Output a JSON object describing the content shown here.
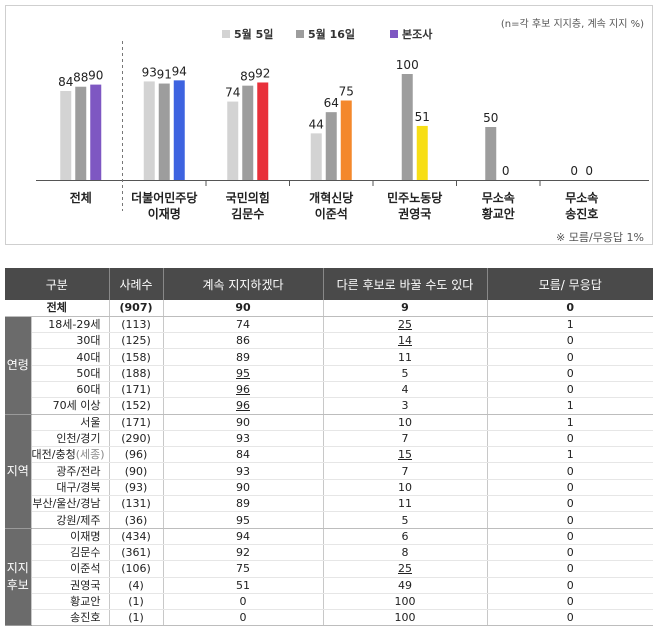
{
  "chart_data": {
    "type": "bar",
    "note": "(n=각 후보 지지층, 계속 지지 %)",
    "footnote": "※ 모름/무응답 1%",
    "ylim": [
      0,
      100
    ],
    "legend_position": "top",
    "categories": [
      [
        "전체"
      ],
      [
        "더불어민주당",
        "이재명"
      ],
      [
        "국민의힘",
        "김문수"
      ],
      [
        "개혁신당",
        "이준석"
      ],
      [
        "민주노동당",
        "권영국"
      ],
      [
        "무소속",
        "황교안"
      ],
      [
        "무소속",
        "송진호"
      ]
    ],
    "series": [
      {
        "name": "5월 5일",
        "values": [
          84,
          93,
          74,
          44,
          null,
          null,
          null
        ]
      },
      {
        "name": "5월 16일",
        "values": [
          88,
          91,
          89,
          64,
          100,
          50,
          0
        ]
      },
      {
        "name": "본조사",
        "values": [
          90,
          94,
          92,
          75,
          51,
          0,
          0
        ]
      }
    ],
    "colors": {
      "series_0": "#d3d3d3",
      "series_1": "#9d9d9d",
      "series_2_per_category": [
        "#7e57c2",
        "#3d63e0",
        "#e8303a",
        "#f4882c",
        "#f7de14",
        "#9d9d9d",
        "#9d9d9d"
      ]
    }
  },
  "table": {
    "headers": [
      "구분",
      "사례수",
      "계속 지지하겠다",
      "다른 후보로 바꿀 수도 있다",
      "모름/ 무응답"
    ],
    "total": {
      "label": "전체",
      "n": "(907)",
      "keep": "90",
      "switch": "9",
      "dk": "0"
    },
    "groups": [
      {
        "label": "연령",
        "rows": [
          {
            "label": "18세-29세",
            "n": "(113)",
            "keep": "74",
            "switch": "25",
            "dk": "1",
            "ul": "switch"
          },
          {
            "label": "30대",
            "n": "(125)",
            "keep": "86",
            "switch": "14",
            "dk": "0",
            "ul": "switch"
          },
          {
            "label": "40대",
            "n": "(158)",
            "keep": "89",
            "switch": "11",
            "dk": "0"
          },
          {
            "label": "50대",
            "n": "(188)",
            "keep": "95",
            "switch": "5",
            "dk": "0",
            "ul": "keep"
          },
          {
            "label": "60대",
            "n": "(171)",
            "keep": "96",
            "switch": "4",
            "dk": "0",
            "ul": "keep"
          },
          {
            "label": "70세 이상",
            "n": "(152)",
            "keep": "96",
            "switch": "3",
            "dk": "1",
            "ul": "keep"
          }
        ]
      },
      {
        "label": "지역",
        "rows": [
          {
            "label": "서울",
            "n": "(171)",
            "keep": "90",
            "switch": "10",
            "dk": "1"
          },
          {
            "label": "인천/경기",
            "n": "(290)",
            "keep": "93",
            "switch": "7",
            "dk": "0"
          },
          {
            "label": "대전/충청",
            "label_extra": "(세종)",
            "n": "(96)",
            "keep": "84",
            "switch": "15",
            "dk": "1",
            "ul": "switch"
          },
          {
            "label": "광주/전라",
            "n": "(90)",
            "keep": "93",
            "switch": "7",
            "dk": "0"
          },
          {
            "label": "대구/경북",
            "n": "(93)",
            "keep": "90",
            "switch": "10",
            "dk": "0"
          },
          {
            "label": "부산/울산/경남",
            "n": "(131)",
            "keep": "89",
            "switch": "11",
            "dk": "0"
          },
          {
            "label": "강원/제주",
            "n": "(36)",
            "keep": "95",
            "switch": "5",
            "dk": "0"
          }
        ]
      },
      {
        "label": "지지후보",
        "rows": [
          {
            "label": "이재명",
            "n": "(434)",
            "keep": "94",
            "switch": "6",
            "dk": "0"
          },
          {
            "label": "김문수",
            "n": "(361)",
            "keep": "92",
            "switch": "8",
            "dk": "0"
          },
          {
            "label": "이준석",
            "n": "(106)",
            "keep": "75",
            "switch": "25",
            "dk": "0",
            "ul": "switch"
          },
          {
            "label": "권영국",
            "n": "(4)",
            "keep": "51",
            "switch": "49",
            "dk": "0"
          },
          {
            "label": "황교안",
            "n": "(1)",
            "keep": "0",
            "switch": "100",
            "dk": "0"
          },
          {
            "label": "송진호",
            "n": "(1)",
            "keep": "0",
            "switch": "100",
            "dk": "0"
          }
        ]
      }
    ]
  }
}
